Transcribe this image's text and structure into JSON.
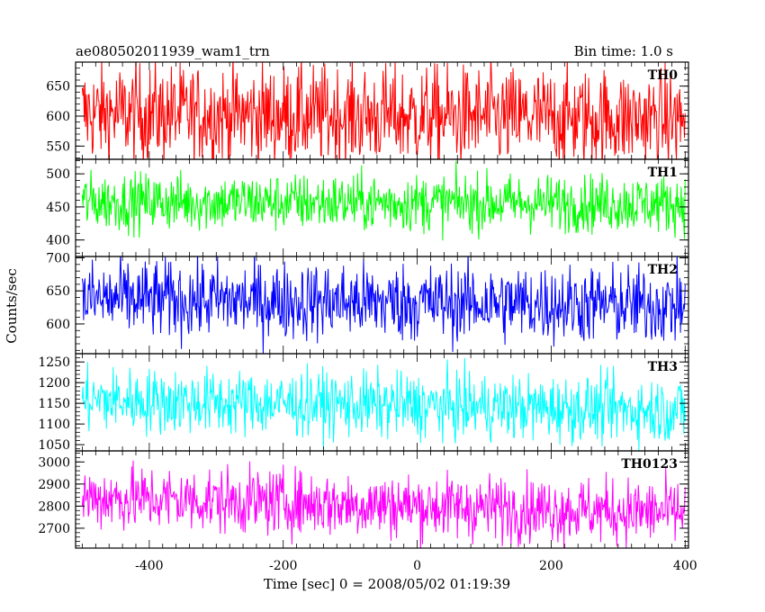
{
  "header": {
    "title": "ae080502011939_wam1_trn",
    "bin_time": "Bin time: 1.0 s"
  },
  "chart_data": {
    "type": "line",
    "xlabel": "Time [sec] 0 = 2008/05/02 01:19:39",
    "ylabel": "Counts/sec",
    "xlim": [
      -510,
      405
    ],
    "x_range": [
      -500,
      400
    ],
    "x_ticks": [
      -400,
      -200,
      0,
      200,
      400
    ],
    "series": [
      {
        "name": "TH0",
        "color": "#ff0000",
        "ylim": [
          528,
          690
        ],
        "y_ticks": [
          550,
          600,
          650
        ],
        "mean": 605,
        "spread": 42,
        "trend": -10
      },
      {
        "name": "TH1",
        "color": "#00ff00",
        "ylim": [
          375,
          522
        ],
        "y_ticks": [
          400,
          450,
          500
        ],
        "mean": 458,
        "spread": 22,
        "trend": -3
      },
      {
        "name": "TH2",
        "color": "#0000ff",
        "ylim": [
          555,
          702
        ],
        "y_ticks": [
          600,
          650,
          700
        ],
        "mean": 638,
        "spread": 30,
        "trend": -10
      },
      {
        "name": "TH3",
        "color": "#00ffff",
        "ylim": [
          1035,
          1270
        ],
        "y_ticks": [
          1050,
          1100,
          1150,
          1200,
          1250
        ],
        "mean": 1158,
        "spread": 40,
        "trend": -25
      },
      {
        "name": "TH0123",
        "color": "#ff00ff",
        "ylim": [
          2610,
          3050
        ],
        "y_ticks": [
          2700,
          2800,
          2900,
          3000
        ],
        "mean": 2840,
        "spread": 75,
        "trend": -70
      }
    ]
  }
}
